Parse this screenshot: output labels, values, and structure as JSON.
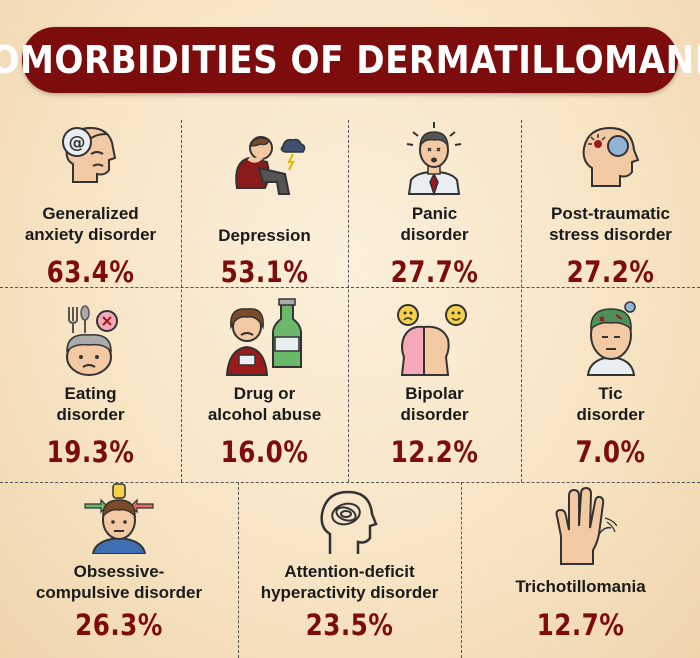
{
  "title": "COMORBIDITIES OF DERMATILLOMANIA",
  "chart_data": {
    "type": "table",
    "title": "COMORBIDITIES OF DERMATILLOMANIA",
    "unit": "%",
    "categories": [
      "Generalized anxiety disorder",
      "Depression",
      "Panic disorder",
      "Post-traumatic stress disorder",
      "Eating disorder",
      "Drug or alcohol abuse",
      "Bipolar disorder",
      "Tic disorder",
      "Obsessive-compulsive disorder",
      "Attention-deficit hyperactivity disorder",
      "Trichotillomania"
    ],
    "values": [
      63.4,
      53.1,
      27.7,
      27.2,
      19.3,
      16.0,
      12.2,
      7.0,
      26.3,
      23.5,
      12.7
    ]
  },
  "items": [
    {
      "label_lines": [
        "Generalized",
        "anxiety disorder"
      ],
      "value": "63.4%",
      "icon": "anxious-head-icon"
    },
    {
      "label_lines": [
        "Depression"
      ],
      "value": "53.1%",
      "icon": "depressed-person-icon"
    },
    {
      "label_lines": [
        "Panic",
        "disorder"
      ],
      "value": "27.7%",
      "icon": "panic-person-icon"
    },
    {
      "label_lines": [
        "Post-traumatic",
        "stress disorder"
      ],
      "value": "27.2%",
      "icon": "ptsd-head-icon"
    },
    {
      "label_lines": [
        "Eating",
        "disorder"
      ],
      "value": "19.3%",
      "icon": "eating-disorder-icon"
    },
    {
      "label_lines": [
        "Drug or",
        "alcohol abuse"
      ],
      "value": "16.0%",
      "icon": "alcohol-bottle-icon"
    },
    {
      "label_lines": [
        "Bipolar",
        "disorder"
      ],
      "value": "12.2%",
      "icon": "bipolar-faces-icon"
    },
    {
      "label_lines": [
        "Tic",
        "disorder"
      ],
      "value": "7.0%",
      "icon": "tic-head-icon"
    },
    {
      "label_lines": [
        "Obsessive-",
        "compulsive disorder"
      ],
      "value": "26.3%",
      "icon": "ocd-head-icon"
    },
    {
      "label_lines": [
        "Attention-deficit",
        "hyperactivity disorder"
      ],
      "value": "23.5%",
      "icon": "adhd-head-icon"
    },
    {
      "label_lines": [
        "Trichotillomania"
      ],
      "value": "12.7%",
      "icon": "hand-pulling-hair-icon"
    }
  ],
  "colors": {
    "title_background": "#7d0d0d",
    "title_text": "#ffffff",
    "value_text": "#7d0d0d",
    "label_text": "#1b1b1b"
  }
}
